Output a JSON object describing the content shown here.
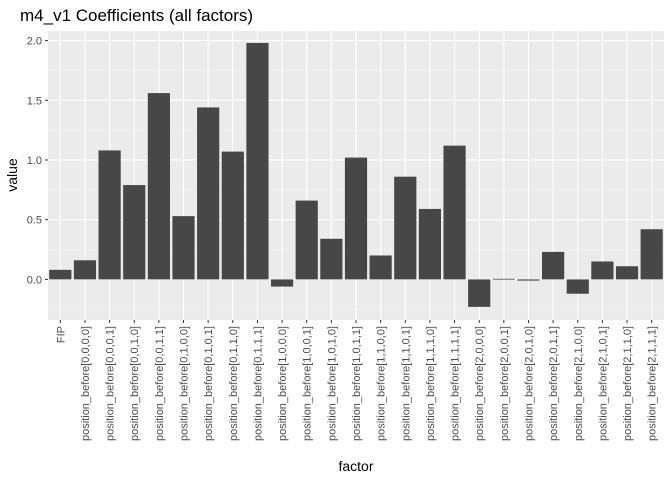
{
  "chart_data": {
    "type": "bar",
    "title": "m4_v1 Coefficients (all factors)",
    "xlabel": "factor",
    "ylabel": "value",
    "ylim": [
      -0.34,
      2.08
    ],
    "yticks": [
      0.0,
      0.5,
      1.0,
      1.5,
      2.0
    ],
    "ytick_labels": [
      "0.0",
      "0.5",
      "1.0",
      "1.5",
      "2.0"
    ],
    "grid": true,
    "legend": "none",
    "categories": [
      "FIP",
      "position_before[0,0,0,0]",
      "position_before[0,0,0,1]",
      "position_before[0,0,1,0]",
      "position_before[0,0,1,1]",
      "position_before[0,1,0,0]",
      "position_before[0,1,0,1]",
      "position_before[0,1,1,0]",
      "position_before[0,1,1,1]",
      "position_before[1,0,0,0]",
      "position_before[1,0,0,1]",
      "position_before[1,0,1,0]",
      "position_before[1,0,1,1]",
      "position_before[1,1,0,0]",
      "position_before[1,1,0,1]",
      "position_before[1,1,1,0]",
      "position_before[1,1,1,1]",
      "position_before[2,0,0,0]",
      "position_before[2,0,0,1]",
      "position_before[2,0,1,0]",
      "position_before[2,0,1,1]",
      "position_before[2,1,0,0]",
      "position_before[2,1,0,1]",
      "position_before[2,1,1,0]",
      "position_before[2,1,1,1]"
    ],
    "values": [
      0.08,
      0.16,
      1.08,
      0.79,
      1.56,
      0.53,
      1.44,
      1.07,
      1.98,
      -0.06,
      0.66,
      0.34,
      1.02,
      0.2,
      0.86,
      0.59,
      1.12,
      -0.23,
      0.005,
      -0.01,
      0.23,
      -0.12,
      0.15,
      0.11,
      0.42
    ],
    "colors": {
      "bar": "#474747",
      "panel": "#ebebeb",
      "grid": "#ffffff"
    }
  }
}
